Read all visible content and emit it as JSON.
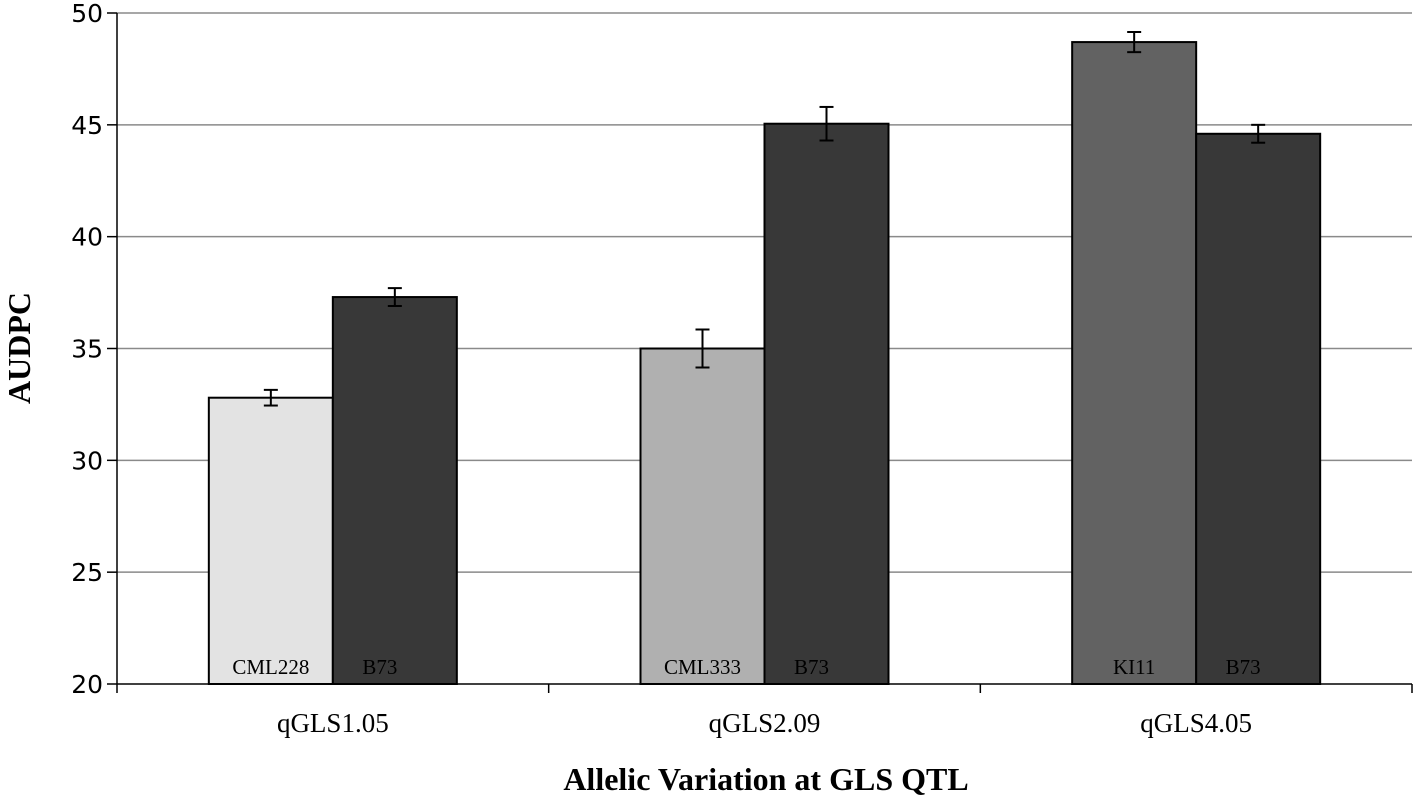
{
  "chart_data": {
    "type": "bar",
    "title": "",
    "xlabel": "Allelic Variation at GLS QTL",
    "ylabel": "AUDPC",
    "ylim": [
      20,
      50
    ],
    "yticks": [
      20,
      25,
      30,
      35,
      40,
      45,
      50
    ],
    "grid": true,
    "legend": "none",
    "groups": [
      {
        "name": "qGLS1.05",
        "bars": [
          {
            "label": "CML228",
            "value": 32.8,
            "error": 0.35,
            "color": "#e3e3e3",
            "label_color": "#000000"
          },
          {
            "label": "B73",
            "value": 37.3,
            "error": 0.4,
            "color": "#383838",
            "label_color": "#000000"
          }
        ]
      },
      {
        "name": "qGLS2.09",
        "bars": [
          {
            "label": "CML333",
            "value": 35.0,
            "error": 0.85,
            "color": "#b0b0b0",
            "label_color": "#000000"
          },
          {
            "label": "B73",
            "value": 45.05,
            "error": 0.75,
            "color": "#383838",
            "label_color": "#000000"
          }
        ]
      },
      {
        "name": "qGLS4.05",
        "bars": [
          {
            "label": "KI11",
            "value": 48.7,
            "error": 0.45,
            "color": "#626262",
            "label_color": "#000000"
          },
          {
            "label": "B73",
            "value": 44.6,
            "error": 0.4,
            "color": "#383838",
            "label_color": "#000000"
          }
        ]
      }
    ]
  }
}
